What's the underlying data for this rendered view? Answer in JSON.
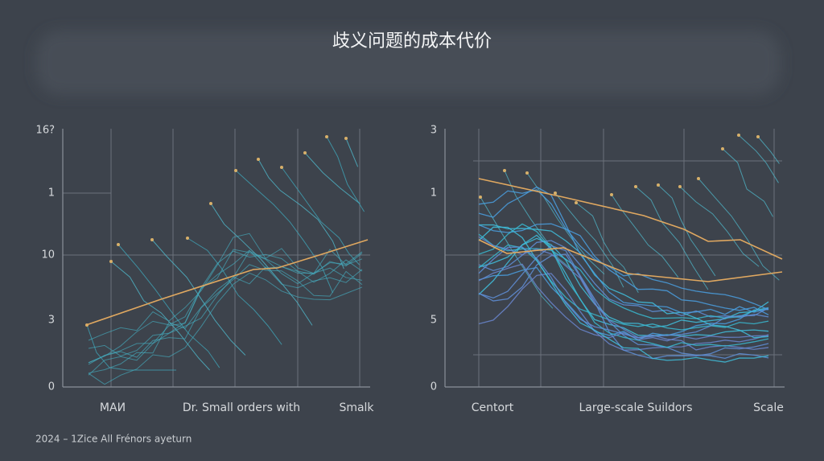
{
  "title": "歧义问题的成本代价",
  "panels": [
    {
      "y_labels": [
        "16?",
        "1",
        "10",
        "3",
        "0"
      ],
      "x_labels": [
        "MAИ",
        "Dr. Small orders with",
        "Smalk"
      ]
    },
    {
      "y_labels": [
        "3",
        "1",
        "5",
        "0"
      ],
      "x_labels": [
        "Centort",
        "Large-scale Suildors",
        "Scale"
      ]
    }
  ],
  "footer": "2024 – 1Zice All Frénors ayeturn"
}
